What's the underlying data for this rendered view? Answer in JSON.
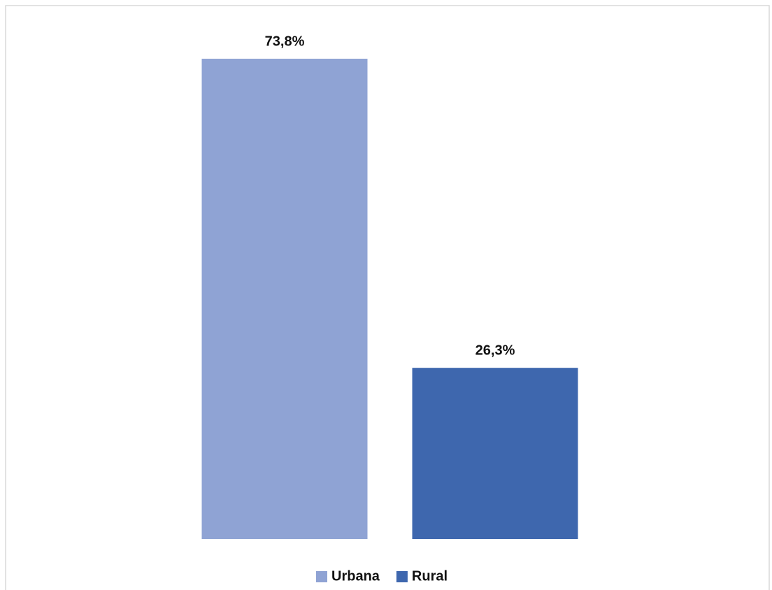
{
  "chart_data": {
    "type": "bar",
    "categories": [
      null
    ],
    "series": [
      {
        "name": "Urbana",
        "color": "#8fa3d4",
        "values": [
          73.8
        ],
        "value_labels": [
          "73,8%"
        ]
      },
      {
        "name": "Rural",
        "color": "#3e67ae",
        "values": [
          26.3
        ],
        "value_labels": [
          "26,3%"
        ]
      }
    ],
    "legend": "bottom"
  }
}
